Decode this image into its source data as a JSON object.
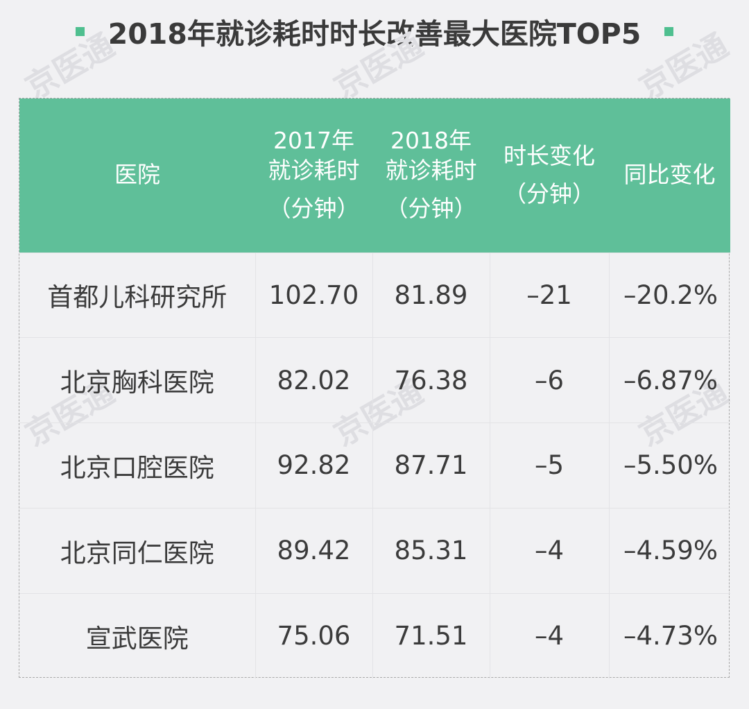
{
  "title": "2018年就诊耗时时长改善最大医院TOP5",
  "watermark": "京医通",
  "colors": {
    "accent": "#5fbf99",
    "bullet": "#4fbf8f",
    "background": "#f1f1f3"
  },
  "chart_data": {
    "type": "table",
    "title": "2018年就诊耗时时长改善最大医院TOP5",
    "columns": [
      {
        "line1": "医院",
        "line2": "",
        "unit": ""
      },
      {
        "line1": "2017年",
        "line2": "就诊耗时",
        "unit": "（分钟）"
      },
      {
        "line1": "2018年",
        "line2": "就诊耗时",
        "unit": "（分钟）"
      },
      {
        "line1": "时长变化",
        "line2": "",
        "unit": "（分钟）"
      },
      {
        "line1": "同比变化",
        "line2": "",
        "unit": ""
      }
    ],
    "rows": [
      [
        "首都儿科研究所",
        "102.70",
        "81.89",
        "–21",
        "–20.2%"
      ],
      [
        "北京胸科医院",
        "82.02",
        "76.38",
        "–6",
        "–6.87%"
      ],
      [
        "北京口腔医院",
        "92.82",
        "87.71",
        "–5",
        "–5.50%"
      ],
      [
        "北京同仁医院",
        "89.42",
        "85.31",
        "–4",
        "–4.59%"
      ],
      [
        "宣武医院",
        "75.06",
        "71.51",
        "–4",
        "–4.73%"
      ]
    ]
  }
}
